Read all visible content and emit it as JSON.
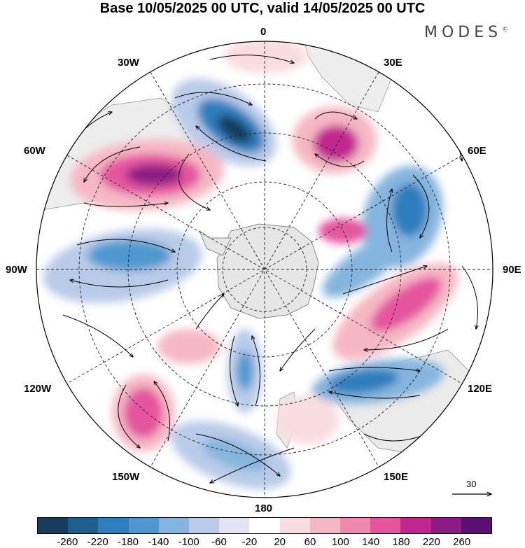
{
  "title": "Base 10/05/2025 00 UTC, valid 14/05/2025 00 UTC",
  "brand": "MODES",
  "brand_mark": "©",
  "map": {
    "projection": "south-polar-stereographic",
    "longitude_labels": [
      "0",
      "30E",
      "60E",
      "90E",
      "120E",
      "150E",
      "180",
      "150W",
      "120W",
      "90W",
      "60W",
      "30W"
    ],
    "land_color": "#e6e6e6",
    "gridlines": "dashed"
  },
  "legend": {
    "colors": [
      "#173c5c",
      "#1f5f8e",
      "#2e7dbd",
      "#4f98cf",
      "#85b5de",
      "#b9cbe8",
      "#e3e4f3",
      "#ffffff",
      "#f9dcdf",
      "#f5b7c4",
      "#ef88ad",
      "#e4559e",
      "#c22590",
      "#8d1b84",
      "#5a0f72"
    ],
    "tick_labels": [
      "-260",
      "-220",
      "-180",
      "-140",
      "-100",
      "-60",
      "-20",
      "20",
      "60",
      "100",
      "140",
      "180",
      "220",
      "260"
    ]
  },
  "vector_scale": {
    "label": "30",
    "icon": "arrow-right-icon"
  }
}
